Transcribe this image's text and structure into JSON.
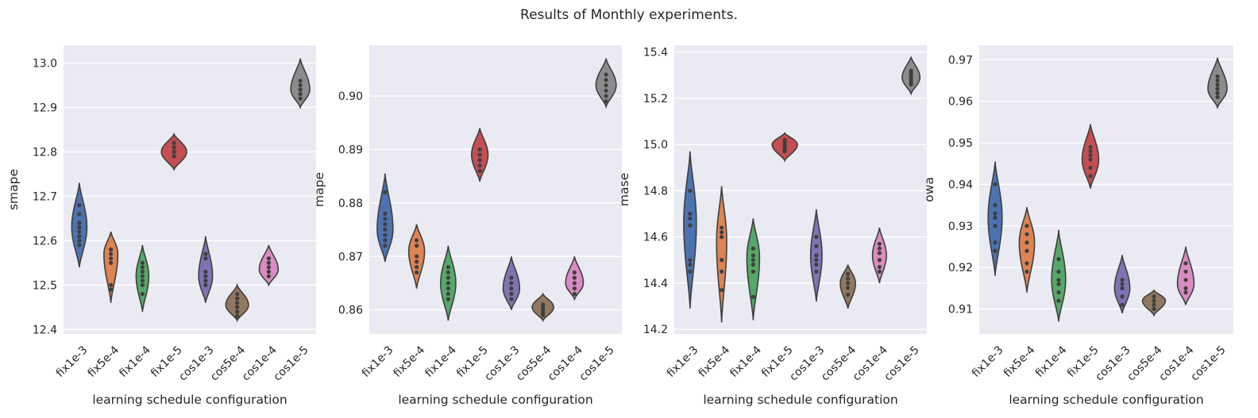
{
  "chart_data": {
    "type": "violin",
    "suptitle": "Results of Monthly experiments.",
    "categories": [
      "fix1e-3",
      "fix5e-4",
      "fix1e-4",
      "fix1e-5",
      "cos1e-3",
      "cos5e-4",
      "cos1e-4",
      "cos1e-5"
    ],
    "colors": [
      "#4c72b0",
      "#dd8452",
      "#55a868",
      "#c44e52",
      "#8172b3",
      "#937860",
      "#da8bc3",
      "#8c8c8c"
    ],
    "panels": [
      {
        "metric": "smape",
        "xlabel": "learning schedule configuration",
        "ylabel": "smape",
        "ylim": [
          12.39,
          13.04
        ],
        "yticks": [
          12.4,
          12.5,
          12.6,
          12.7,
          12.8,
          12.9,
          13.0
        ],
        "ytick_labels": [
          "12.4",
          "12.5",
          "12.6",
          "12.7",
          "12.8",
          "12.9",
          "13.0"
        ],
        "violins": [
          {
            "lo": 12.54,
            "hi": 12.73,
            "mode": 12.63,
            "width": 0.24,
            "points": [
              12.59,
              12.6,
              12.61,
              12.62,
              12.63,
              12.64,
              12.66,
              12.68
            ]
          },
          {
            "lo": 12.46,
            "hi": 12.62,
            "mode": 12.57,
            "width": 0.22,
            "points": [
              12.49,
              12.5,
              12.55,
              12.56,
              12.57,
              12.58,
              12.58
            ]
          },
          {
            "lo": 12.44,
            "hi": 12.59,
            "mode": 12.52,
            "width": 0.2,
            "points": [
              12.48,
              12.5,
              12.51,
              12.52,
              12.53,
              12.54,
              12.55
            ]
          },
          {
            "lo": 12.76,
            "hi": 12.84,
            "mode": 12.8,
            "width": 0.4,
            "points": [
              12.79,
              12.8,
              12.8,
              12.81,
              12.81,
              12.82
            ]
          },
          {
            "lo": 12.46,
            "hi": 12.61,
            "mode": 12.52,
            "width": 0.22,
            "points": [
              12.5,
              12.51,
              12.52,
              12.53,
              12.56,
              12.57
            ]
          },
          {
            "lo": 12.42,
            "hi": 12.5,
            "mode": 12.455,
            "width": 0.36,
            "points": [
              12.43,
              12.44,
              12.45,
              12.46,
              12.47,
              12.48
            ]
          },
          {
            "lo": 12.5,
            "hi": 12.59,
            "mode": 12.535,
            "width": 0.3,
            "points": [
              12.52,
              12.53,
              12.54,
              12.55,
              12.56
            ]
          },
          {
            "lo": 12.9,
            "hi": 13.01,
            "mode": 12.94,
            "width": 0.3,
            "points": [
              12.92,
              12.93,
              12.94,
              12.94,
              12.95,
              12.96
            ]
          }
        ]
      },
      {
        "metric": "mape",
        "xlabel": "learning schedule configuration",
        "ylabel": "mape",
        "ylim": [
          0.8555,
          0.9095
        ],
        "yticks": [
          0.86,
          0.87,
          0.88,
          0.89,
          0.9
        ],
        "ytick_labels": [
          "0.86",
          "0.87",
          "0.88",
          "0.89",
          "0.90"
        ],
        "violins": [
          {
            "lo": 0.869,
            "hi": 0.8855,
            "mode": 0.875,
            "width": 0.25,
            "points": [
              0.872,
              0.873,
              0.874,
              0.875,
              0.876,
              0.877,
              0.878,
              0.882
            ]
          },
          {
            "lo": 0.864,
            "hi": 0.876,
            "mode": 0.871,
            "width": 0.25,
            "points": [
              0.867,
              0.868,
              0.869,
              0.87,
              0.872,
              0.873
            ]
          },
          {
            "lo": 0.858,
            "hi": 0.872,
            "mode": 0.865,
            "width": 0.24,
            "points": [
              0.862,
              0.863,
              0.864,
              0.865,
              0.866,
              0.867,
              0.868
            ]
          },
          {
            "lo": 0.884,
            "hi": 0.894,
            "mode": 0.889,
            "width": 0.26,
            "points": [
              0.886,
              0.887,
              0.888,
              0.889,
              0.89
            ]
          },
          {
            "lo": 0.86,
            "hi": 0.87,
            "mode": 0.864,
            "width": 0.26,
            "points": [
              0.862,
              0.863,
              0.864,
              0.865,
              0.866
            ]
          },
          {
            "lo": 0.858,
            "hi": 0.863,
            "mode": 0.8605,
            "width": 0.34,
            "points": [
              0.859,
              0.8595,
              0.86,
              0.8605,
              0.861
            ]
          },
          {
            "lo": 0.862,
            "hi": 0.87,
            "mode": 0.865,
            "width": 0.28,
            "points": [
              0.863,
              0.864,
              0.865,
              0.866,
              0.867
            ]
          },
          {
            "lo": 0.898,
            "hi": 0.907,
            "mode": 0.902,
            "width": 0.32,
            "points": [
              0.899,
              0.9,
              0.901,
              0.902,
              0.903,
              0.904
            ]
          }
        ]
      },
      {
        "metric": "mase",
        "xlabel": "learning schedule configuration",
        "ylabel": "mase",
        "ylim": [
          14.18,
          15.43
        ],
        "yticks": [
          14.2,
          14.4,
          14.6,
          14.8,
          15.0,
          15.2,
          15.4
        ],
        "ytick_labels": [
          "14.2",
          "14.4",
          "14.6",
          "14.8",
          "15.0",
          "15.2",
          "15.4"
        ],
        "violins": [
          {
            "lo": 14.29,
            "hi": 14.97,
            "mode": 14.66,
            "width": 0.2,
            "points": [
              14.45,
              14.48,
              14.5,
              14.65,
              14.68,
              14.7,
              14.8
            ]
          },
          {
            "lo": 14.23,
            "hi": 14.82,
            "mode": 14.58,
            "width": 0.16,
            "points": [
              14.37,
              14.45,
              14.5,
              14.6,
              14.62,
              14.64
            ]
          },
          {
            "lo": 14.24,
            "hi": 14.68,
            "mode": 14.51,
            "width": 0.2,
            "points": [
              14.34,
              14.45,
              14.48,
              14.5,
              14.52,
              14.55
            ]
          },
          {
            "lo": 14.93,
            "hi": 15.05,
            "mode": 15.0,
            "width": 0.4,
            "points": [
              14.97,
              14.98,
              14.99,
              15.0,
              15.01,
              15.02
            ]
          },
          {
            "lo": 14.32,
            "hi": 14.72,
            "mode": 14.52,
            "width": 0.18,
            "points": [
              14.45,
              14.48,
              14.5,
              14.52,
              14.56,
              14.6
            ]
          },
          {
            "lo": 14.29,
            "hi": 14.48,
            "mode": 14.4,
            "width": 0.24,
            "points": [
              14.35,
              14.38,
              14.4,
              14.42,
              14.44
            ]
          },
          {
            "lo": 14.4,
            "hi": 14.64,
            "mode": 14.52,
            "width": 0.22,
            "points": [
              14.45,
              14.47,
              14.5,
              14.53,
              14.55,
              14.57
            ]
          },
          {
            "lo": 15.22,
            "hi": 15.38,
            "mode": 15.29,
            "width": 0.28,
            "points": [
              15.26,
              15.27,
              15.28,
              15.29,
              15.3,
              15.31,
              15.32
            ]
          }
        ]
      },
      {
        "metric": "owa",
        "xlabel": "learning schedule configuration",
        "ylabel": "owa",
        "ylim": [
          0.904,
          0.9735
        ],
        "yticks": [
          0.91,
          0.92,
          0.93,
          0.94,
          0.95,
          0.96,
          0.97
        ],
        "ytick_labels": [
          "0.91",
          "0.92",
          "0.93",
          "0.94",
          "0.95",
          "0.96",
          "0.97"
        ],
        "violins": [
          {
            "lo": 0.918,
            "hi": 0.9455,
            "mode": 0.932,
            "width": 0.22,
            "points": [
              0.924,
              0.926,
              0.93,
              0.932,
              0.933,
              0.935,
              0.94
            ]
          },
          {
            "lo": 0.914,
            "hi": 0.9345,
            "mode": 0.926,
            "width": 0.24,
            "points": [
              0.919,
              0.921,
              0.924,
              0.926,
              0.928,
              0.93
            ]
          },
          {
            "lo": 0.907,
            "hi": 0.929,
            "mode": 0.917,
            "width": 0.22,
            "points": [
              0.912,
              0.914,
              0.916,
              0.917,
              0.919,
              0.922
            ]
          },
          {
            "lo": 0.939,
            "hi": 0.9545,
            "mode": 0.946,
            "width": 0.26,
            "points": [
              0.942,
              0.944,
              0.946,
              0.947,
              0.948,
              0.949
            ]
          },
          {
            "lo": 0.909,
            "hi": 0.923,
            "mode": 0.915,
            "width": 0.24,
            "points": [
              0.911,
              0.913,
              0.915,
              0.916,
              0.917
            ]
          },
          {
            "lo": 0.9085,
            "hi": 0.9145,
            "mode": 0.912,
            "width": 0.36,
            "points": [
              0.91,
              0.911,
              0.912,
              0.913
            ]
          },
          {
            "lo": 0.911,
            "hi": 0.925,
            "mode": 0.916,
            "width": 0.26,
            "points": [
              0.914,
              0.915,
              0.917,
              0.919,
              0.921
            ]
          },
          {
            "lo": 0.9585,
            "hi": 0.9705,
            "mode": 0.963,
            "width": 0.3,
            "points": [
              0.961,
              0.962,
              0.963,
              0.964,
              0.965,
              0.966
            ]
          }
        ]
      }
    ]
  }
}
